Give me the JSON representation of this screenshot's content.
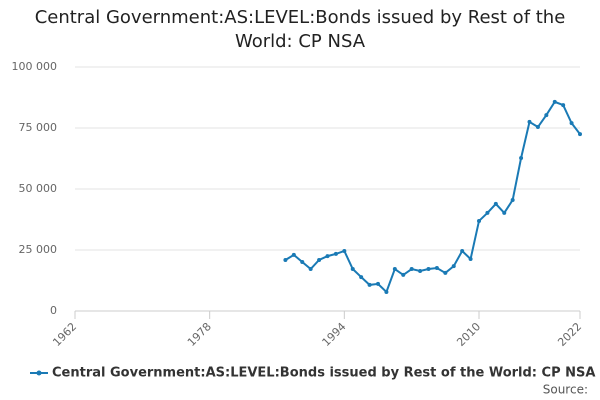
{
  "chart_data": {
    "type": "line",
    "title": "Central Government:AS:LEVEL:Bonds issued by Rest of the World: CP NSA",
    "source": "Source:",
    "x": [
      1987,
      1988,
      1989,
      1990,
      1991,
      1992,
      1993,
      1994,
      1995,
      1996,
      1997,
      1998,
      1999,
      2000,
      2001,
      2002,
      2003,
      2004,
      2005,
      2006,
      2007,
      2008,
      2009,
      2010,
      2011,
      2012,
      2013,
      2014,
      2015,
      2016,
      2017,
      2018,
      2019,
      2020,
      2021,
      2022
    ],
    "series": [
      {
        "name": "Central Government:AS:LEVEL:Bonds issued by Rest of the World: CP NSA",
        "color": "#1a7ab5",
        "values": [
          20900,
          23000,
          20100,
          17200,
          20900,
          22500,
          23400,
          24600,
          17200,
          13900,
          10700,
          11100,
          7800,
          17200,
          14800,
          17200,
          16400,
          17200,
          17600,
          15600,
          18400,
          24600,
          21300,
          36900,
          40200,
          43900,
          40200,
          45500,
          62700,
          77500,
          75400,
          80300,
          85700,
          84400,
          77000,
          72500
        ]
      }
    ],
    "xlim": [
      1962,
      2022
    ],
    "xticks": [
      1962,
      1978,
      1994,
      2010,
      2022
    ],
    "ylim": [
      0,
      100000
    ],
    "yticks": [
      0,
      {
        "value": 25000,
        "label": "25 000"
      },
      {
        "value": 50000,
        "label": "50 000"
      },
      {
        "value": 75000,
        "label": "75 000"
      },
      {
        "value": 100000,
        "label": "100 000"
      }
    ],
    "grid": true
  }
}
